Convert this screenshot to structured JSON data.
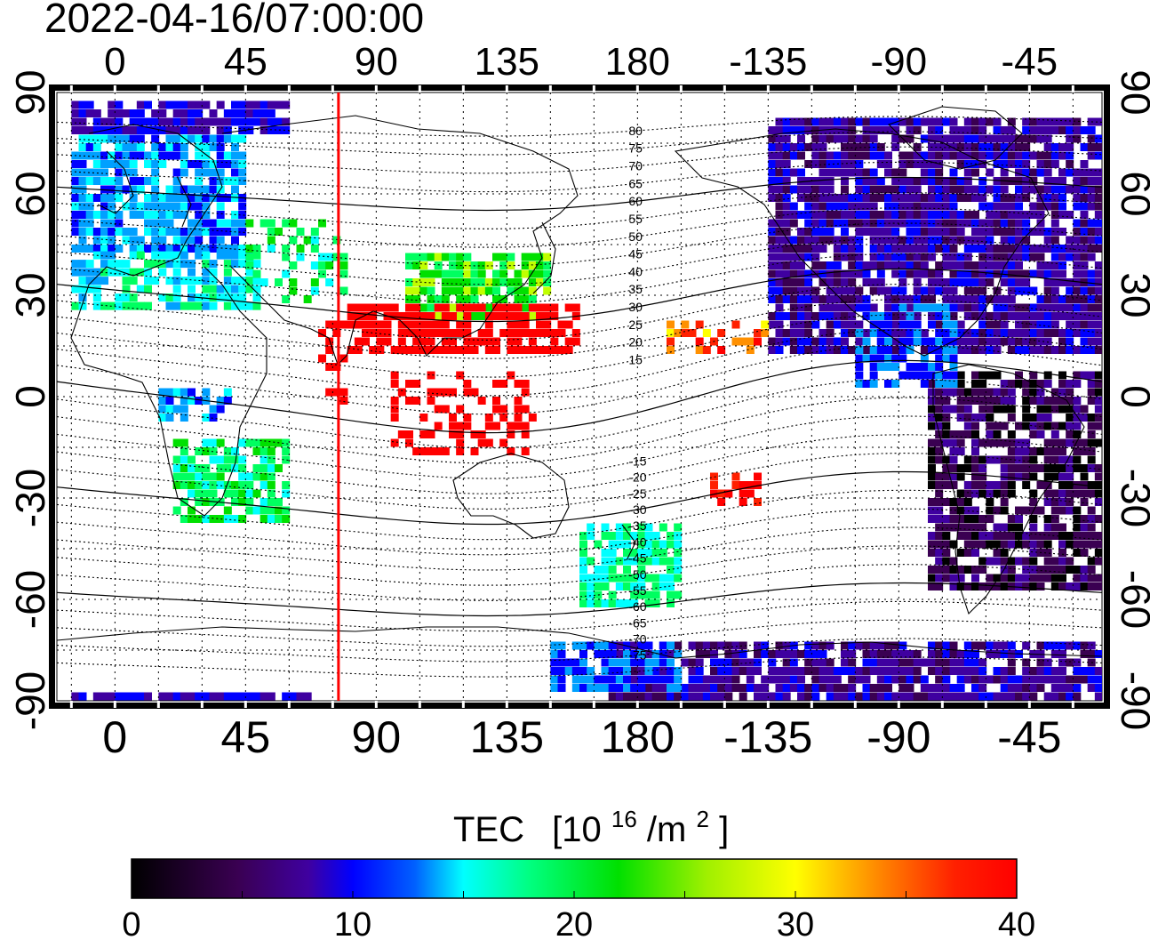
{
  "title": "2022-04-16/07:00:00",
  "lon_ticks": [
    "0",
    "45",
    "90",
    "135",
    "180",
    "-135",
    "-90",
    "-45"
  ],
  "lat_ticks": [
    "90",
    "60",
    "30",
    "0",
    "-30",
    "-60",
    "-90"
  ],
  "colorbar": {
    "label": "TEC",
    "unit_prefix": "[10",
    "unit_exp": "16",
    "unit_mid": "/m",
    "unit_exp2": "2",
    "unit_suffix": "]",
    "min": 0,
    "max": 40,
    "tick_labels": [
      "0",
      "10",
      "20",
      "30",
      "40"
    ]
  },
  "magnetic_contour_labels": [
    "80",
    "75",
    "70",
    "65",
    "60",
    "55",
    "50",
    "45",
    "40",
    "35",
    "30",
    "25",
    "20",
    "15",
    "-15",
    "-20",
    "-25",
    "-30",
    "-35",
    "-40",
    "-45",
    "-50",
    "-55",
    "-60",
    "-65",
    "-70",
    "-75"
  ],
  "map": {
    "lon_left": -20,
    "lon_right": 340,
    "lat_top": 90,
    "lat_bottom": -90,
    "red_meridian_lon": 77
  },
  "colors": {
    "meridian": "#ff0000",
    "scale": [
      "#000000",
      "#3a0052",
      "#3f00a0",
      "#0000ff",
      "#00a0ff",
      "#00ffff",
      "#00ff60",
      "#00e000",
      "#c0ff00",
      "#ffff00",
      "#ff9000",
      "#ff2000",
      "#ff0000"
    ]
  }
}
